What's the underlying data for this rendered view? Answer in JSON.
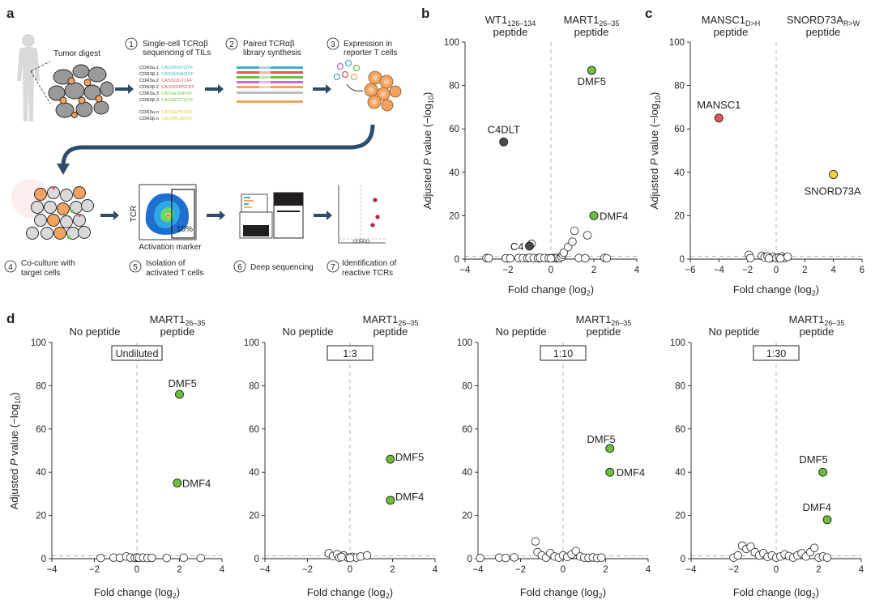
{
  "colors": {
    "cell_fill": "#9a9a9a",
    "cell_orange": "#f3a25f",
    "arrow": "#2d4b6b",
    "green": "#6cbf3a",
    "dark": "#4a4a4a",
    "red": "#e2595a",
    "yellow": "#f5d33a",
    "open": "#ffffff",
    "dash": "#b5b5b5"
  },
  "panel_a": {
    "letter": "a",
    "tumor_label": "Tumor digest",
    "steps": [
      {
        "num": "1",
        "lines": [
          "Single-cell TCRαβ",
          "sequencing of TILs"
        ]
      },
      {
        "num": "2",
        "lines": [
          "Paired TCRαβ",
          "library synthesis"
        ]
      },
      {
        "num": "3",
        "lines": [
          "Expression in",
          "reporter T cells"
        ]
      },
      {
        "num": "4",
        "lines": [
          "Co-culture with",
          "target cells"
        ]
      },
      {
        "num": "5",
        "lines": [
          "Isolation of",
          "activated T cells"
        ]
      },
      {
        "num": "6",
        "lines": [
          "Deep sequencing"
        ]
      },
      {
        "num": "7",
        "lines": [
          "Identification of",
          "reactive TCRs"
        ]
      }
    ],
    "cdr_list": [
      "CDR3a.1",
      "CDR3β.1",
      "CDR3a.2",
      "CDR3β.2",
      "CDR3a.3",
      "CDR3β.3",
      "⋮",
      "CDR3a.n",
      "CDR3β.n"
    ],
    "cdr_seq": [
      "CASSFGTQYF",
      "CASSHNAQYF",
      "CASSQGTLFF",
      "CASWDRNTEF",
      "CASSESFFVF",
      "CASSPGTQYF",
      "",
      "CASAEPSSYF",
      "CASSPLAQYF"
    ],
    "cdr_colors": [
      "#3fb0c8",
      "#3fb0c8",
      "#e2595a",
      "#e2595a",
      "#6cbf3a",
      "#6cbf3a",
      "#231f20",
      "#f3c23a",
      "#f3c23a"
    ],
    "flow_ylabel": "TCR",
    "flow_xlabel": "Activation marker",
    "flow_pct": "10%"
  },
  "panel_b": {
    "letter": "b",
    "left_header": [
      "WT1",
      "126–134",
      "peptide"
    ],
    "right_header": [
      "MART1",
      "26–35",
      "peptide"
    ],
    "ylabel": "Adjusted P value (−log10)",
    "xlabel": "Fold change (log2)"
  },
  "panel_c": {
    "letter": "c",
    "left_header": [
      "MANSC1",
      "D>H",
      "peptide"
    ],
    "right_header": [
      "SNORD73A",
      "R>W",
      "peptide"
    ],
    "ylabel": "Adjusted P value (−log10)",
    "xlabel": "Fold change (log2)"
  },
  "panel_d": {
    "letter": "d",
    "left_header": "No peptide",
    "right_header": [
      "MART1",
      "26–35",
      "peptide"
    ],
    "ylabel": "Adjusted P value (−log10)",
    "xlabel": "Fold change (log2)"
  },
  "chart_data": [
    {
      "id": "b",
      "type": "scatter",
      "xlim": [
        -4,
        4
      ],
      "ylim": [
        0,
        100
      ],
      "xticks": [
        -4,
        -2,
        0,
        2,
        4
      ],
      "yticks": [
        0,
        20,
        40,
        60,
        80,
        100
      ],
      "highlighted": [
        {
          "label": "DMF5",
          "x": 1.9,
          "y": 87,
          "color": "#6cbf3a"
        },
        {
          "label": "C4DLT",
          "x": -2.2,
          "y": 54,
          "color": "#4a4a4a"
        },
        {
          "label": "DMF4",
          "x": 2.0,
          "y": 20,
          "color": "#6cbf3a"
        },
        {
          "label": "C4",
          "x": -1.0,
          "y": 6,
          "color": "#4a4a4a"
        }
      ],
      "background": [
        [
          -3.0,
          0.5
        ],
        [
          -2.9,
          0.4
        ],
        [
          -2.1,
          0.4
        ],
        [
          -1.9,
          0.3
        ],
        [
          -1.5,
          0.5
        ],
        [
          -1.3,
          0.5
        ],
        [
          -1.1,
          0.4
        ],
        [
          -1.0,
          0.6
        ],
        [
          -0.8,
          0.5
        ],
        [
          -0.6,
          0.4
        ],
        [
          -0.5,
          0.6
        ],
        [
          -0.3,
          0.5
        ],
        [
          -0.1,
          0.4
        ],
        [
          0.1,
          0.5
        ],
        [
          0.2,
          0.4
        ],
        [
          0.3,
          0.6
        ],
        [
          0.4,
          0.4
        ],
        [
          0.5,
          1.0
        ],
        [
          0.55,
          2.0
        ],
        [
          0.6,
          3.0
        ],
        [
          0.8,
          5.5
        ],
        [
          1.0,
          8.0
        ],
        [
          1.1,
          13.0
        ],
        [
          1.3,
          0.5
        ],
        [
          1.6,
          0.4
        ],
        [
          1.7,
          11.0
        ],
        [
          2.5,
          0.6
        ],
        [
          2.6,
          0.4
        ],
        [
          -0.9,
          7.0
        ],
        [
          0.0,
          0.3
        ]
      ]
    },
    {
      "id": "c",
      "type": "scatter",
      "xlim": [
        -6,
        6
      ],
      "ylim": [
        0,
        100
      ],
      "xticks": [
        -6,
        -4,
        -2,
        0,
        2,
        4,
        6
      ],
      "yticks": [
        0,
        20,
        40,
        60,
        80,
        100
      ],
      "highlighted": [
        {
          "label": "MANSC1",
          "x": -4.0,
          "y": 65,
          "color": "#e2595a"
        },
        {
          "label": "SNORD73A",
          "x": 4.0,
          "y": 39,
          "color": "#f5d33a"
        }
      ],
      "background": [
        [
          -1.9,
          2.0
        ],
        [
          -1.8,
          0.5
        ],
        [
          -1.0,
          1.5
        ],
        [
          -0.8,
          0.8
        ],
        [
          -0.6,
          1.2
        ],
        [
          -0.4,
          0.5
        ],
        [
          -0.2,
          1.0
        ],
        [
          0.0,
          0.5
        ],
        [
          0.2,
          0.8
        ],
        [
          0.4,
          1.2
        ],
        [
          0.6,
          0.5
        ],
        [
          0.8,
          1.0
        ],
        [
          -0.5,
          0.3
        ],
        [
          0.3,
          0.3
        ]
      ]
    },
    {
      "id": "d1",
      "type": "scatter",
      "condition": "Undiluted",
      "xlim": [
        -4,
        4
      ],
      "ylim": [
        0,
        100
      ],
      "xticks": [
        -4,
        -2,
        0,
        2,
        4
      ],
      "yticks": [
        0,
        20,
        40,
        60,
        80,
        100
      ],
      "highlighted": [
        {
          "label": "DMF5",
          "x": 2.0,
          "y": 76,
          "color": "#6cbf3a"
        },
        {
          "label": "DMF4",
          "x": 1.9,
          "y": 35,
          "color": "#6cbf3a"
        }
      ],
      "background": [
        [
          -1.7,
          0.3
        ],
        [
          -1.1,
          0.5
        ],
        [
          -0.8,
          0.4
        ],
        [
          -0.5,
          1.0
        ],
        [
          -0.3,
          0.5
        ],
        [
          -0.1,
          0.3
        ],
        [
          0.0,
          0.6
        ],
        [
          0.1,
          0.4
        ],
        [
          0.3,
          0.5
        ],
        [
          0.5,
          0.3
        ],
        [
          0.7,
          0.4
        ],
        [
          1.4,
          0.3
        ],
        [
          2.2,
          0.5
        ],
        [
          3.0,
          0.3
        ]
      ]
    },
    {
      "id": "d2",
      "type": "scatter",
      "condition": "1:3",
      "xlim": [
        -4,
        4
      ],
      "ylim": [
        0,
        100
      ],
      "xticks": [
        -4,
        -2,
        0,
        2,
        4
      ],
      "yticks": [
        0,
        20,
        40,
        60,
        80,
        100
      ],
      "highlighted": [
        {
          "label": "DMF5",
          "x": 1.9,
          "y": 46,
          "color": "#6cbf3a"
        },
        {
          "label": "DMF4",
          "x": 1.9,
          "y": 27,
          "color": "#6cbf3a"
        }
      ],
      "background": [
        [
          -1.0,
          2.5
        ],
        [
          -0.8,
          1.2
        ],
        [
          -0.6,
          2.0
        ],
        [
          -0.5,
          0.5
        ],
        [
          -0.3,
          1.5
        ],
        [
          -0.1,
          0.5
        ],
        [
          0.1,
          0.8
        ],
        [
          0.3,
          0.5
        ],
        [
          0.5,
          1.0
        ],
        [
          0.8,
          1.5
        ],
        [
          -0.4,
          0.8
        ],
        [
          0.0,
          0.3
        ]
      ]
    },
    {
      "id": "d3",
      "type": "scatter",
      "condition": "1:10",
      "xlim": [
        -4,
        4
      ],
      "ylim": [
        0,
        100
      ],
      "xticks": [
        -4,
        -2,
        0,
        2,
        4
      ],
      "yticks": [
        0,
        20,
        40,
        60,
        80,
        100
      ],
      "highlighted": [
        {
          "label": "DMF5",
          "x": 2.2,
          "y": 51,
          "color": "#6cbf3a"
        },
        {
          "label": "DMF4",
          "x": 2.2,
          "y": 40,
          "color": "#6cbf3a"
        }
      ],
      "background": [
        [
          -3.9,
          0.3
        ],
        [
          -3.0,
          0.5
        ],
        [
          -2.7,
          0.3
        ],
        [
          -2.3,
          0.6
        ],
        [
          -1.3,
          8.0
        ],
        [
          -1.2,
          3.0
        ],
        [
          -1.0,
          1.5
        ],
        [
          -0.8,
          0.5
        ],
        [
          -0.6,
          2.5
        ],
        [
          -0.4,
          1.0
        ],
        [
          -0.2,
          0.5
        ],
        [
          0.0,
          1.5
        ],
        [
          0.2,
          0.8
        ],
        [
          0.4,
          2.0
        ],
        [
          0.6,
          3.5
        ],
        [
          0.8,
          1.0
        ],
        [
          1.0,
          0.5
        ],
        [
          1.2,
          0.4
        ],
        [
          1.4,
          0.6
        ],
        [
          1.6,
          0.3
        ],
        [
          1.8,
          0.5
        ]
      ]
    },
    {
      "id": "d4",
      "type": "scatter",
      "condition": "1:30",
      "xlim": [
        -4,
        4
      ],
      "ylim": [
        0,
        100
      ],
      "xticks": [
        -4,
        -2,
        0,
        2,
        4
      ],
      "yticks": [
        0,
        20,
        40,
        60,
        80,
        100
      ],
      "highlighted": [
        {
          "label": "DMF5",
          "x": 2.2,
          "y": 40,
          "color": "#6cbf3a"
        },
        {
          "label": "DMF4",
          "x": 2.4,
          "y": 18,
          "color": "#6cbf3a"
        }
      ],
      "background": [
        [
          -2.0,
          0.5
        ],
        [
          -1.8,
          1.5
        ],
        [
          -1.6,
          6.0
        ],
        [
          -1.4,
          4.5
        ],
        [
          -1.2,
          5.5
        ],
        [
          -1.0,
          3.0
        ],
        [
          -0.8,
          1.5
        ],
        [
          -0.6,
          2.5
        ],
        [
          -0.4,
          0.8
        ],
        [
          -0.2,
          1.5
        ],
        [
          0.0,
          0.5
        ],
        [
          0.2,
          1.0
        ],
        [
          0.4,
          2.0
        ],
        [
          0.6,
          1.2
        ],
        [
          0.8,
          0.5
        ],
        [
          1.0,
          1.5
        ],
        [
          1.2,
          2.5
        ],
        [
          1.4,
          1.0
        ],
        [
          1.6,
          3.0
        ],
        [
          1.8,
          5.0
        ],
        [
          2.0,
          0.5
        ],
        [
          2.2,
          1.0
        ],
        [
          2.4,
          0.5
        ]
      ]
    }
  ]
}
